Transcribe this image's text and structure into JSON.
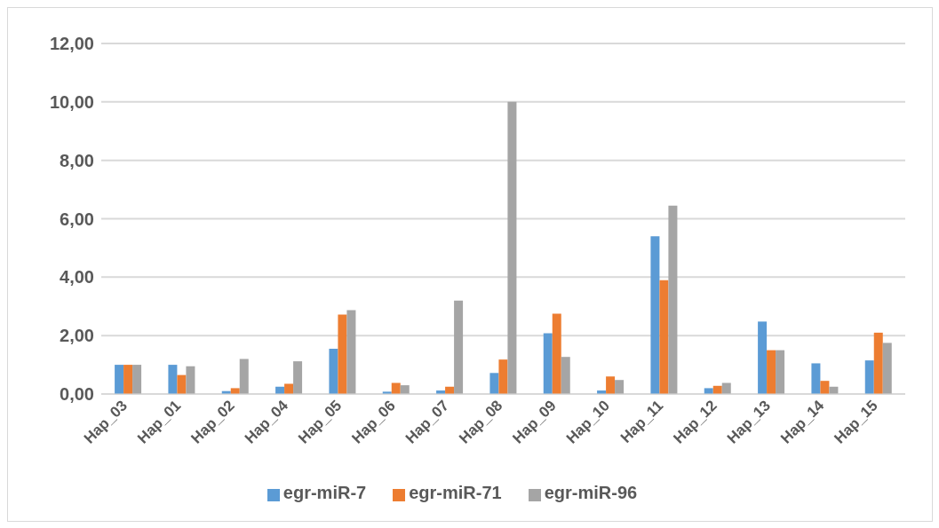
{
  "chart_data": {
    "type": "bar",
    "categories": [
      "Hap_03",
      "Hap_01",
      "Hap_02",
      "Hap_04",
      "Hap_05",
      "Hap_06",
      "Hap_07",
      "Hap_08",
      "Hap_09",
      "Hap_10",
      "Hap_11",
      "Hap_12",
      "Hap_13",
      "Hap_14",
      "Hap_15"
    ],
    "series": [
      {
        "name": "egr-miR-7",
        "color": "#5b9bd5",
        "values": [
          1.0,
          1.0,
          0.1,
          0.25,
          1.55,
          0.08,
          0.12,
          0.72,
          2.08,
          0.12,
          5.4,
          0.2,
          2.48,
          1.05,
          1.15
        ]
      },
      {
        "name": "egr-miR-71",
        "color": "#ed7d31",
        "values": [
          1.0,
          0.65,
          0.2,
          0.35,
          2.72,
          0.38,
          0.25,
          1.18,
          2.75,
          0.6,
          3.9,
          0.28,
          1.5,
          0.45,
          2.1
        ]
      },
      {
        "name": "egr-miR-96",
        "color": "#a5a5a5",
        "values": [
          1.0,
          0.95,
          1.2,
          1.12,
          2.87,
          0.3,
          3.2,
          10.0,
          1.27,
          0.48,
          6.45,
          0.38,
          1.5,
          0.25,
          1.75
        ]
      }
    ],
    "ylim": [
      0,
      12
    ],
    "yticks": [
      {
        "value": 0,
        "label": "0,00"
      },
      {
        "value": 2,
        "label": "2,00"
      },
      {
        "value": 4,
        "label": "4,00"
      },
      {
        "value": 6,
        "label": "6,00"
      },
      {
        "value": 8,
        "label": "8,00"
      },
      {
        "value": 10,
        "label": "10,00"
      },
      {
        "value": 12,
        "label": "12,00"
      }
    ],
    "grid": "y",
    "legend": "bottom"
  }
}
